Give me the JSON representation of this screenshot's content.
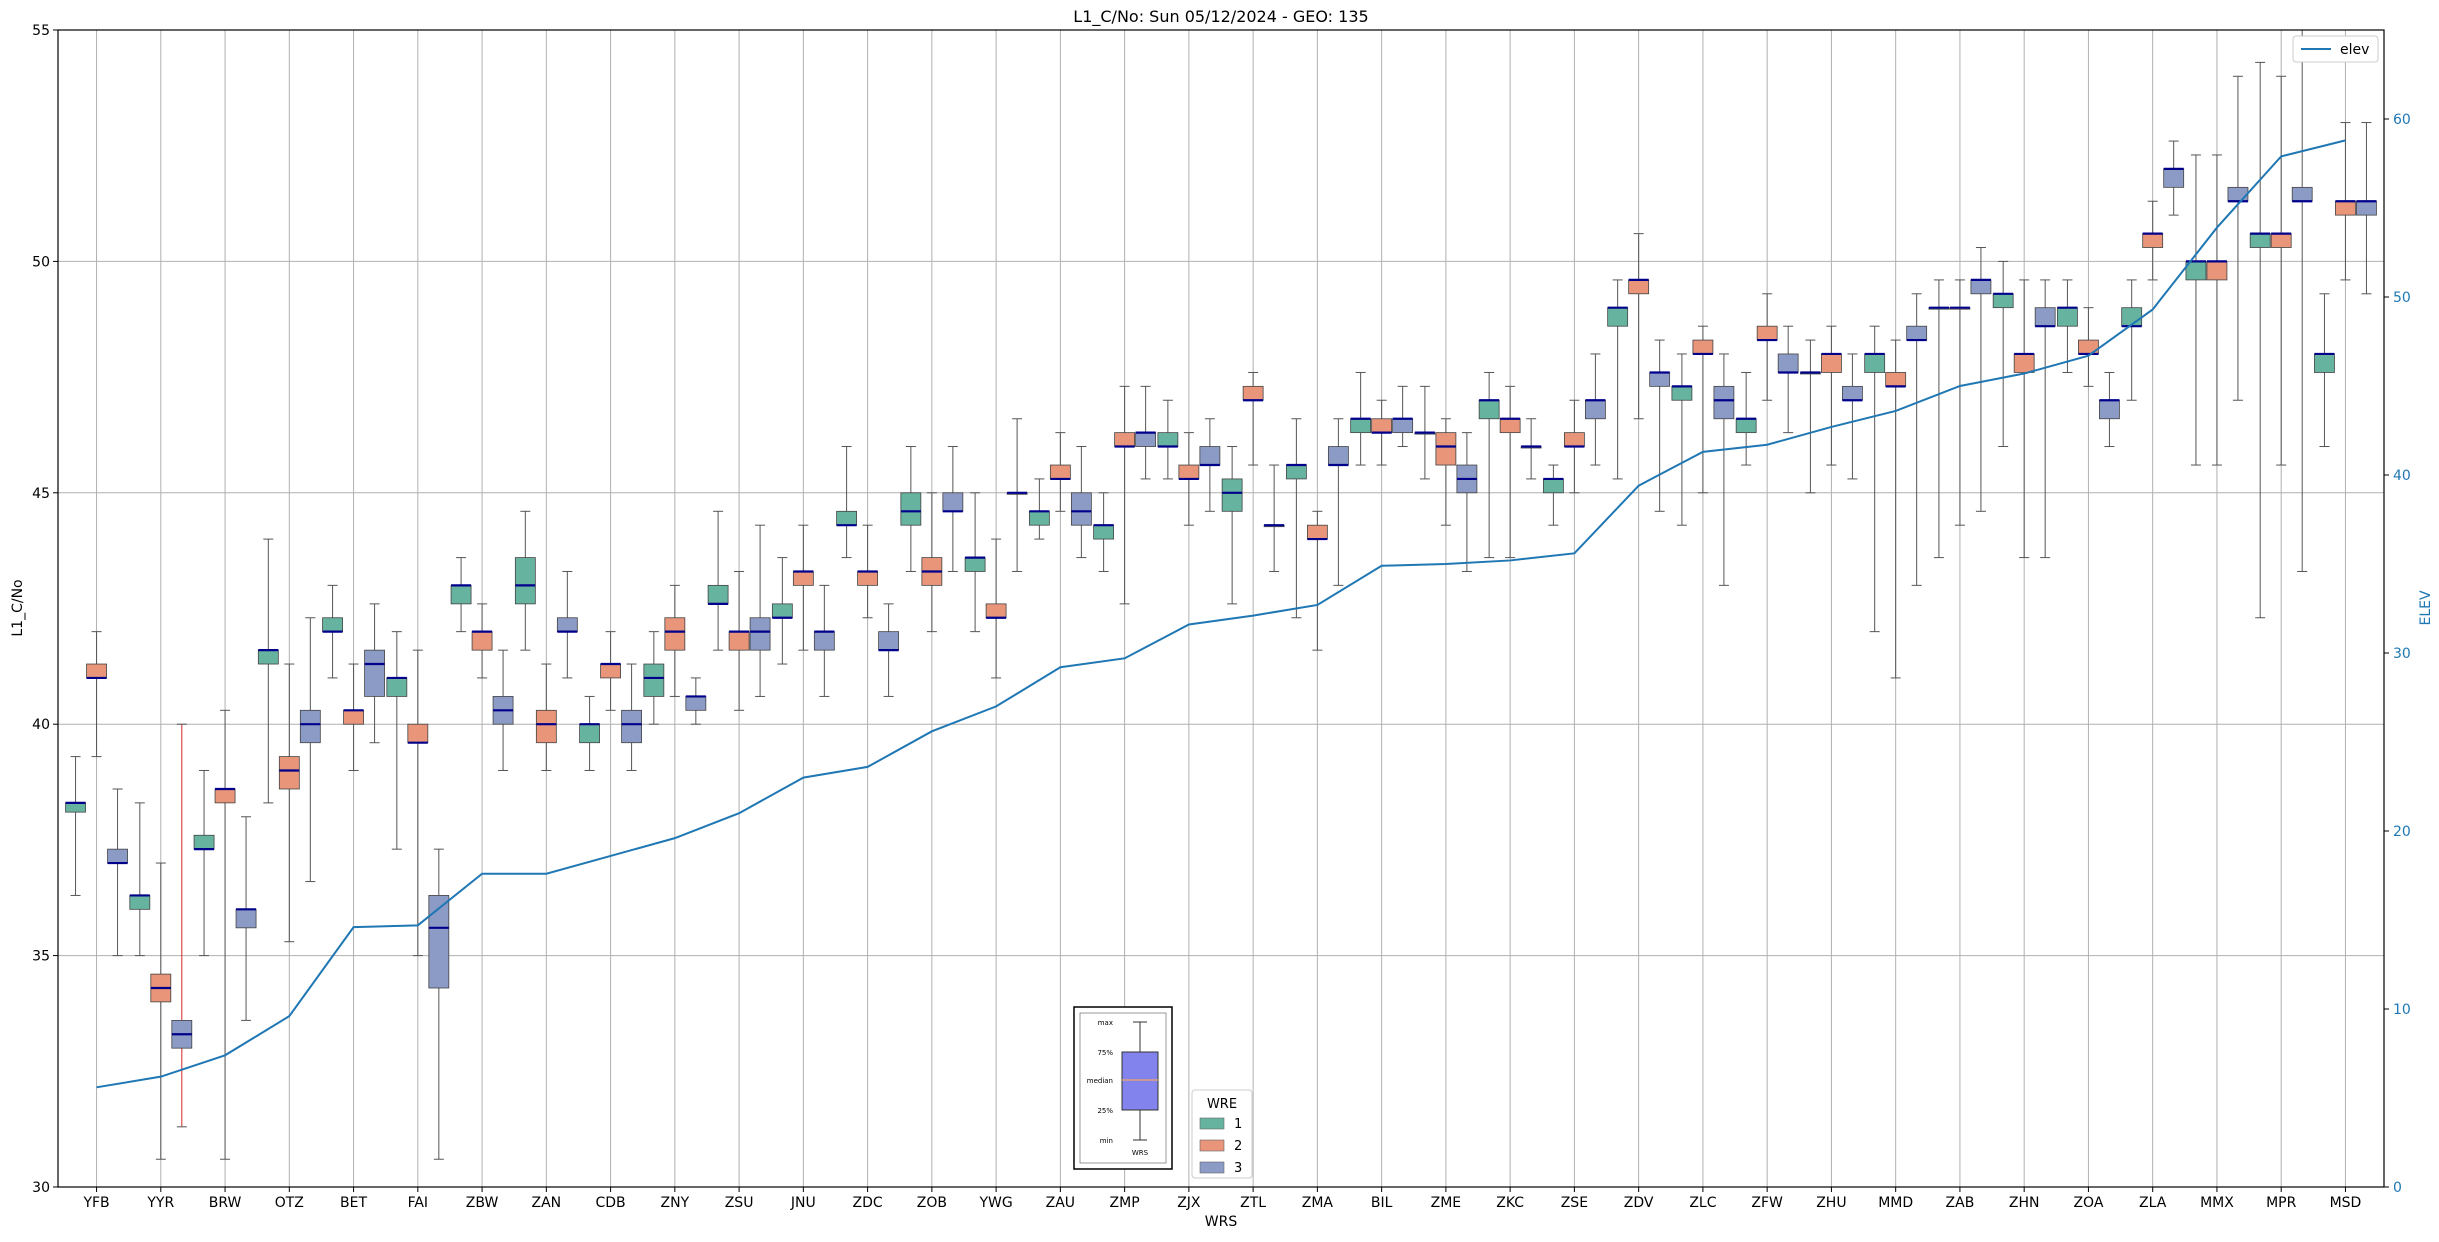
{
  "chart_data": {
    "type": "box",
    "title": "L1_C/No: Sun 05/12/2024 - GEO: 135",
    "xlabel": "WRS",
    "ylabel": "L1_C/No",
    "y2label": "ELEV",
    "ylim": [
      30,
      55
    ],
    "y2lim": [
      0,
      65
    ],
    "yticks": [
      30,
      35,
      40,
      45,
      50,
      55
    ],
    "y2ticks": [
      0,
      10,
      20,
      30,
      40,
      50,
      60
    ],
    "grid": true,
    "categories": [
      "YFB",
      "YYR",
      "BRW",
      "OTZ",
      "BET",
      "FAI",
      "ZBW",
      "ZAN",
      "CDB",
      "ZNY",
      "ZSU",
      "JNU",
      "ZDC",
      "ZOB",
      "YWG",
      "ZAU",
      "ZMP",
      "ZJX",
      "ZTL",
      "ZMA",
      "BIL",
      "ZME",
      "ZKC",
      "ZSE",
      "ZDV",
      "ZLC",
      "ZFW",
      "ZHU",
      "MMD",
      "ZAB",
      "ZHN",
      "ZOA",
      "ZLA",
      "MMX",
      "MPR",
      "MSD"
    ],
    "wre_colors": {
      "1": "#66b3a0",
      "2": "#e8957a",
      "3": "#8c9bc6"
    },
    "median_color": "#00008b",
    "elev_color": "#1f77b4",
    "boxes": [
      {
        "site": "YFB",
        "wre": "1",
        "min": 36.3,
        "q1": 38.1,
        "median": 38.3,
        "q3": 38.3,
        "max": 39.3
      },
      {
        "site": "YFB",
        "wre": "2",
        "min": 39.3,
        "q1": 41.0,
        "median": 41.0,
        "q3": 41.3,
        "max": 42.0
      },
      {
        "site": "YFB",
        "wre": "3",
        "min": 35.0,
        "q1": 37.0,
        "median": 37.0,
        "q3": 37.3,
        "max": 38.6
      },
      {
        "site": "YYR",
        "wre": "1",
        "min": 35.0,
        "q1": 36.0,
        "median": 36.3,
        "q3": 36.3,
        "max": 38.3
      },
      {
        "site": "YYR",
        "wre": "2",
        "min": 30.6,
        "q1": 34.0,
        "median": 34.3,
        "q3": 34.6,
        "max": 37.0
      },
      {
        "site": "YYR",
        "wre": "3",
        "min": 31.3,
        "q1": 33.0,
        "median": 33.3,
        "q3": 33.6,
        "max": 40.0
      },
      {
        "site": "BRW",
        "wre": "1",
        "min": 35.0,
        "q1": 37.3,
        "median": 37.3,
        "q3": 37.6,
        "max": 39.0
      },
      {
        "site": "BRW",
        "wre": "2",
        "min": 30.6,
        "q1": 38.3,
        "median": 38.6,
        "q3": 38.6,
        "max": 40.3
      },
      {
        "site": "BRW",
        "wre": "3",
        "min": 33.6,
        "q1": 35.6,
        "median": 36.0,
        "q3": 36.0,
        "max": 38.0
      },
      {
        "site": "OTZ",
        "wre": "1",
        "min": 38.3,
        "q1": 41.3,
        "median": 41.6,
        "q3": 41.6,
        "max": 44.0
      },
      {
        "site": "OTZ",
        "wre": "2",
        "min": 35.3,
        "q1": 38.6,
        "median": 39.0,
        "q3": 39.3,
        "max": 41.3
      },
      {
        "site": "OTZ",
        "wre": "3",
        "min": 36.6,
        "q1": 39.6,
        "median": 40.0,
        "q3": 40.3,
        "max": 42.3
      },
      {
        "site": "BET",
        "wre": "1",
        "min": 41.0,
        "q1": 42.0,
        "median": 42.0,
        "q3": 42.3,
        "max": 43.0
      },
      {
        "site": "BET",
        "wre": "2",
        "min": 39.0,
        "q1": 40.0,
        "median": 40.3,
        "q3": 40.3,
        "max": 41.3
      },
      {
        "site": "BET",
        "wre": "3",
        "min": 39.6,
        "q1": 40.6,
        "median": 41.3,
        "q3": 41.6,
        "max": 42.6
      },
      {
        "site": "FAI",
        "wre": "1",
        "min": 37.3,
        "q1": 40.6,
        "median": 41.0,
        "q3": 41.0,
        "max": 42.0
      },
      {
        "site": "FAI",
        "wre": "2",
        "min": 35.0,
        "q1": 39.6,
        "median": 39.6,
        "q3": 40.0,
        "max": 41.6
      },
      {
        "site": "FAI",
        "wre": "3",
        "min": 30.6,
        "q1": 34.3,
        "median": 35.6,
        "q3": 36.3,
        "max": 37.3
      },
      {
        "site": "ZBW",
        "wre": "1",
        "min": 42.0,
        "q1": 42.6,
        "median": 43.0,
        "q3": 43.0,
        "max": 43.6
      },
      {
        "site": "ZBW",
        "wre": "2",
        "min": 41.0,
        "q1": 41.6,
        "median": 42.0,
        "q3": 42.0,
        "max": 42.6
      },
      {
        "site": "ZBW",
        "wre": "3",
        "min": 39.0,
        "q1": 40.0,
        "median": 40.3,
        "q3": 40.6,
        "max": 41.6
      },
      {
        "site": "ZAN",
        "wre": "1",
        "min": 41.6,
        "q1": 42.6,
        "median": 43.0,
        "q3": 43.6,
        "max": 44.6
      },
      {
        "site": "ZAN",
        "wre": "2",
        "min": 39.0,
        "q1": 39.6,
        "median": 40.0,
        "q3": 40.3,
        "max": 41.3
      },
      {
        "site": "ZAN",
        "wre": "3",
        "min": 41.0,
        "q1": 42.0,
        "median": 42.0,
        "q3": 42.3,
        "max": 43.3
      },
      {
        "site": "CDB",
        "wre": "1",
        "min": 39.0,
        "q1": 39.6,
        "median": 40.0,
        "q3": 40.0,
        "max": 40.6
      },
      {
        "site": "CDB",
        "wre": "2",
        "min": 40.3,
        "q1": 41.0,
        "median": 41.3,
        "q3": 41.3,
        "max": 42.0
      },
      {
        "site": "CDB",
        "wre": "3",
        "min": 39.0,
        "q1": 39.6,
        "median": 40.0,
        "q3": 40.3,
        "max": 41.3
      },
      {
        "site": "ZNY",
        "wre": "1",
        "min": 40.0,
        "q1": 40.6,
        "median": 41.0,
        "q3": 41.3,
        "max": 42.0
      },
      {
        "site": "ZNY",
        "wre": "2",
        "min": 40.6,
        "q1": 41.6,
        "median": 42.0,
        "q3": 42.3,
        "max": 43.0
      },
      {
        "site": "ZNY",
        "wre": "3",
        "min": 40.0,
        "q1": 40.3,
        "median": 40.6,
        "q3": 40.6,
        "max": 41.0
      },
      {
        "site": "ZSU",
        "wre": "1",
        "min": 41.6,
        "q1": 42.6,
        "median": 42.6,
        "q3": 43.0,
        "max": 44.6
      },
      {
        "site": "ZSU",
        "wre": "2",
        "min": 40.3,
        "q1": 41.6,
        "median": 42.0,
        "q3": 42.0,
        "max": 43.3
      },
      {
        "site": "ZSU",
        "wre": "3",
        "min": 40.6,
        "q1": 41.6,
        "median": 42.0,
        "q3": 42.3,
        "max": 44.3
      },
      {
        "site": "JNU",
        "wre": "1",
        "min": 41.3,
        "q1": 42.3,
        "median": 42.3,
        "q3": 42.6,
        "max": 43.6
      },
      {
        "site": "JNU",
        "wre": "2",
        "min": 41.6,
        "q1": 43.0,
        "median": 43.3,
        "q3": 43.3,
        "max": 44.3
      },
      {
        "site": "JNU",
        "wre": "3",
        "min": 40.6,
        "q1": 41.6,
        "median": 42.0,
        "q3": 42.0,
        "max": 43.0
      },
      {
        "site": "ZDC",
        "wre": "1",
        "min": 43.6,
        "q1": 44.3,
        "median": 44.3,
        "q3": 44.6,
        "max": 46.0
      },
      {
        "site": "ZDC",
        "wre": "2",
        "min": 42.3,
        "q1": 43.0,
        "median": 43.3,
        "q3": 43.3,
        "max": 44.3
      },
      {
        "site": "ZDC",
        "wre": "3",
        "min": 40.6,
        "q1": 41.6,
        "median": 41.6,
        "q3": 42.0,
        "max": 42.6
      },
      {
        "site": "ZOB",
        "wre": "1",
        "min": 43.3,
        "q1": 44.3,
        "median": 44.6,
        "q3": 45.0,
        "max": 46.0
      },
      {
        "site": "ZOB",
        "wre": "2",
        "min": 42.0,
        "q1": 43.0,
        "median": 43.3,
        "q3": 43.6,
        "max": 45.0
      },
      {
        "site": "ZOB",
        "wre": "3",
        "min": 43.3,
        "q1": 44.6,
        "median": 44.6,
        "q3": 45.0,
        "max": 46.0
      },
      {
        "site": "YWG",
        "wre": "1",
        "min": 42.0,
        "q1": 43.3,
        "median": 43.6,
        "q3": 43.6,
        "max": 45.0
      },
      {
        "site": "YWG",
        "wre": "2",
        "min": 41.0,
        "q1": 42.3,
        "median": 42.3,
        "q3": 42.6,
        "max": 44.0
      },
      {
        "site": "YWG",
        "wre": "3",
        "min": 43.3,
        "q1": 45.0,
        "median": 45.0,
        "q3": 45.0,
        "max": 46.6
      },
      {
        "site": "ZAU",
        "wre": "1",
        "min": 44.0,
        "q1": 44.3,
        "median": 44.6,
        "q3": 44.6,
        "max": 45.3
      },
      {
        "site": "ZAU",
        "wre": "2",
        "min": 44.6,
        "q1": 45.3,
        "median": 45.3,
        "q3": 45.6,
        "max": 46.3
      },
      {
        "site": "ZAU",
        "wre": "3",
        "min": 43.6,
        "q1": 44.3,
        "median": 44.6,
        "q3": 45.0,
        "max": 46.0
      },
      {
        "site": "ZMP",
        "wre": "1",
        "min": 43.3,
        "q1": 44.0,
        "median": 44.3,
        "q3": 44.3,
        "max": 45.0
      },
      {
        "site": "ZMP",
        "wre": "2",
        "min": 42.6,
        "q1": 46.0,
        "median": 46.0,
        "q3": 46.3,
        "max": 47.3
      },
      {
        "site": "ZMP",
        "wre": "3",
        "min": 45.3,
        "q1": 46.0,
        "median": 46.3,
        "q3": 46.3,
        "max": 47.3
      },
      {
        "site": "ZJX",
        "wre": "1",
        "min": 45.3,
        "q1": 46.0,
        "median": 46.0,
        "q3": 46.3,
        "max": 47.0
      },
      {
        "site": "ZJX",
        "wre": "2",
        "min": 44.3,
        "q1": 45.3,
        "median": 45.3,
        "q3": 45.6,
        "max": 46.3
      },
      {
        "site": "ZJX",
        "wre": "3",
        "min": 44.6,
        "q1": 45.6,
        "median": 45.6,
        "q3": 46.0,
        "max": 46.6
      },
      {
        "site": "ZTL",
        "wre": "1",
        "min": 42.6,
        "q1": 44.6,
        "median": 45.0,
        "q3": 45.3,
        "max": 46.0
      },
      {
        "site": "ZTL",
        "wre": "2",
        "min": 45.6,
        "q1": 47.0,
        "median": 47.0,
        "q3": 47.3,
        "max": 47.6
      },
      {
        "site": "ZTL",
        "wre": "3",
        "min": 43.3,
        "q1": 44.3,
        "median": 44.3,
        "q3": 44.3,
        "max": 45.6
      },
      {
        "site": "ZMA",
        "wre": "1",
        "min": 42.3,
        "q1": 45.3,
        "median": 45.6,
        "q3": 45.6,
        "max": 46.6
      },
      {
        "site": "ZMA",
        "wre": "2",
        "min": 41.6,
        "q1": 44.0,
        "median": 44.0,
        "q3": 44.3,
        "max": 44.6
      },
      {
        "site": "ZMA",
        "wre": "3",
        "min": 43.0,
        "q1": 45.6,
        "median": 45.6,
        "q3": 46.0,
        "max": 46.6
      },
      {
        "site": "BIL",
        "wre": "1",
        "min": 45.6,
        "q1": 46.3,
        "median": 46.6,
        "q3": 46.6,
        "max": 47.6
      },
      {
        "site": "BIL",
        "wre": "2",
        "min": 45.6,
        "q1": 46.3,
        "median": 46.3,
        "q3": 46.6,
        "max": 47.0
      },
      {
        "site": "BIL",
        "wre": "3",
        "min": 46.0,
        "q1": 46.3,
        "median": 46.6,
        "q3": 46.6,
        "max": 47.3
      },
      {
        "site": "ZME",
        "wre": "1",
        "min": 45.3,
        "q1": 46.3,
        "median": 46.3,
        "q3": 46.3,
        "max": 47.3
      },
      {
        "site": "ZME",
        "wre": "2",
        "min": 44.3,
        "q1": 45.6,
        "median": 46.0,
        "q3": 46.3,
        "max": 46.6
      },
      {
        "site": "ZME",
        "wre": "3",
        "min": 43.3,
        "q1": 45.0,
        "median": 45.3,
        "q3": 45.6,
        "max": 46.3
      },
      {
        "site": "ZKC",
        "wre": "1",
        "min": 43.6,
        "q1": 46.6,
        "median": 47.0,
        "q3": 47.0,
        "max": 47.6
      },
      {
        "site": "ZKC",
        "wre": "2",
        "min": 43.6,
        "q1": 46.3,
        "median": 46.6,
        "q3": 46.6,
        "max": 47.3
      },
      {
        "site": "ZKC",
        "wre": "3",
        "min": 45.3,
        "q1": 46.0,
        "median": 46.0,
        "q3": 46.0,
        "max": 46.6
      },
      {
        "site": "ZSE",
        "wre": "1",
        "min": 44.3,
        "q1": 45.0,
        "median": 45.3,
        "q3": 45.3,
        "max": 45.6
      },
      {
        "site": "ZSE",
        "wre": "2",
        "min": 45.0,
        "q1": 46.0,
        "median": 46.0,
        "q3": 46.3,
        "max": 47.0
      },
      {
        "site": "ZSE",
        "wre": "3",
        "min": 45.6,
        "q1": 46.6,
        "median": 47.0,
        "q3": 47.0,
        "max": 48.0
      },
      {
        "site": "ZDV",
        "wre": "1",
        "min": 45.3,
        "q1": 48.6,
        "median": 49.0,
        "q3": 49.0,
        "max": 49.6
      },
      {
        "site": "ZDV",
        "wre": "2",
        "min": 46.6,
        "q1": 49.3,
        "median": 49.6,
        "q3": 49.6,
        "max": 50.6
      },
      {
        "site": "ZDV",
        "wre": "3",
        "min": 44.6,
        "q1": 47.3,
        "median": 47.6,
        "q3": 47.6,
        "max": 48.3
      },
      {
        "site": "ZLC",
        "wre": "1",
        "min": 44.3,
        "q1": 47.0,
        "median": 47.3,
        "q3": 47.3,
        "max": 48.0
      },
      {
        "site": "ZLC",
        "wre": "2",
        "min": 45.0,
        "q1": 48.0,
        "median": 48.0,
        "q3": 48.3,
        "max": 48.6
      },
      {
        "site": "ZLC",
        "wre": "3",
        "min": 43.0,
        "q1": 46.6,
        "median": 47.0,
        "q3": 47.3,
        "max": 48.0
      },
      {
        "site": "ZFW",
        "wre": "1",
        "min": 45.6,
        "q1": 46.3,
        "median": 46.6,
        "q3": 46.6,
        "max": 47.6
      },
      {
        "site": "ZFW",
        "wre": "2",
        "min": 47.0,
        "q1": 48.3,
        "median": 48.3,
        "q3": 48.6,
        "max": 49.3
      },
      {
        "site": "ZFW",
        "wre": "3",
        "min": 46.3,
        "q1": 47.6,
        "median": 47.6,
        "q3": 48.0,
        "max": 48.6
      },
      {
        "site": "ZHU",
        "wre": "1",
        "min": 45.0,
        "q1": 47.6,
        "median": 47.6,
        "q3": 47.6,
        "max": 48.3
      },
      {
        "site": "ZHU",
        "wre": "2",
        "min": 45.6,
        "q1": 47.6,
        "median": 48.0,
        "q3": 48.0,
        "max": 48.6
      },
      {
        "site": "ZHU",
        "wre": "3",
        "min": 45.3,
        "q1": 47.0,
        "median": 47.0,
        "q3": 47.3,
        "max": 48.0
      },
      {
        "site": "MMD",
        "wre": "1",
        "min": 42.0,
        "q1": 47.6,
        "median": 48.0,
        "q3": 48.0,
        "max": 48.6
      },
      {
        "site": "MMD",
        "wre": "2",
        "min": 41.0,
        "q1": 47.3,
        "median": 47.3,
        "q3": 47.6,
        "max": 48.3
      },
      {
        "site": "MMD",
        "wre": "3",
        "min": 43.0,
        "q1": 48.3,
        "median": 48.3,
        "q3": 48.6,
        "max": 49.3
      },
      {
        "site": "ZAB",
        "wre": "1",
        "min": 43.6,
        "q1": 49.0,
        "median": 49.0,
        "q3": 49.0,
        "max": 49.6
      },
      {
        "site": "ZAB",
        "wre": "2",
        "min": 44.3,
        "q1": 49.0,
        "median": 49.0,
        "q3": 49.0,
        "max": 49.6
      },
      {
        "site": "ZAB",
        "wre": "3",
        "min": 44.6,
        "q1": 49.3,
        "median": 49.6,
        "q3": 49.6,
        "max": 50.3
      },
      {
        "site": "ZHN",
        "wre": "1",
        "min": 46.0,
        "q1": 49.0,
        "median": 49.3,
        "q3": 49.3,
        "max": 50.0
      },
      {
        "site": "ZHN",
        "wre": "2",
        "min": 43.6,
        "q1": 47.6,
        "median": 48.0,
        "q3": 48.0,
        "max": 49.6
      },
      {
        "site": "ZHN",
        "wre": "3",
        "min": 43.6,
        "q1": 48.6,
        "median": 48.6,
        "q3": 49.0,
        "max": 49.6
      },
      {
        "site": "ZOA",
        "wre": "1",
        "min": 47.6,
        "q1": 48.6,
        "median": 49.0,
        "q3": 49.0,
        "max": 49.6
      },
      {
        "site": "ZOA",
        "wre": "2",
        "min": 47.3,
        "q1": 48.0,
        "median": 48.0,
        "q3": 48.3,
        "max": 49.0
      },
      {
        "site": "ZOA",
        "wre": "3",
        "min": 46.0,
        "q1": 46.6,
        "median": 47.0,
        "q3": 47.0,
        "max": 47.6
      },
      {
        "site": "ZLA",
        "wre": "1",
        "min": 47.0,
        "q1": 48.6,
        "median": 48.6,
        "q3": 49.0,
        "max": 49.6
      },
      {
        "site": "ZLA",
        "wre": "2",
        "min": 49.6,
        "q1": 50.3,
        "median": 50.6,
        "q3": 50.6,
        "max": 51.3
      },
      {
        "site": "ZLA",
        "wre": "3",
        "min": 51.0,
        "q1": 51.6,
        "median": 52.0,
        "q3": 52.0,
        "max": 52.6
      },
      {
        "site": "MMX",
        "wre": "1",
        "min": 45.6,
        "q1": 49.6,
        "median": 50.0,
        "q3": 50.0,
        "max": 52.3
      },
      {
        "site": "MMX",
        "wre": "2",
        "min": 45.6,
        "q1": 49.6,
        "median": 50.0,
        "q3": 50.0,
        "max": 52.3
      },
      {
        "site": "MMX",
        "wre": "3",
        "min": 47.0,
        "q1": 51.3,
        "median": 51.3,
        "q3": 51.6,
        "max": 54.0
      },
      {
        "site": "MPR",
        "wre": "1",
        "min": 42.3,
        "q1": 50.3,
        "median": 50.6,
        "q3": 50.6,
        "max": 54.3
      },
      {
        "site": "MPR",
        "wre": "2",
        "min": 45.6,
        "q1": 50.3,
        "median": 50.6,
        "q3": 50.6,
        "max": 54.0
      },
      {
        "site": "MPR",
        "wre": "3",
        "min": 43.3,
        "q1": 51.3,
        "median": 51.3,
        "q3": 51.6,
        "max": 55.0
      },
      {
        "site": "MSD",
        "wre": "1",
        "min": 46.0,
        "q1": 47.6,
        "median": 48.0,
        "q3": 48.0,
        "max": 49.3
      },
      {
        "site": "MSD",
        "wre": "2",
        "min": 49.6,
        "q1": 51.0,
        "median": 51.3,
        "q3": 51.3,
        "max": 53.0
      },
      {
        "site": "MSD",
        "wre": "3",
        "min": 49.3,
        "q1": 51.0,
        "median": 51.3,
        "q3": 51.3,
        "max": 53.0
      }
    ],
    "elev_series": {
      "name": "elev",
      "values": [
        5.6,
        6.2,
        7.4,
        9.6,
        14.6,
        14.7,
        17.6,
        17.6,
        18.6,
        19.6,
        21.0,
        23.0,
        23.6,
        25.6,
        27.0,
        29.2,
        29.7,
        31.6,
        32.1,
        32.7,
        34.9,
        35.0,
        35.2,
        35.6,
        39.4,
        41.3,
        41.7,
        42.7,
        43.6,
        45.0,
        45.7,
        46.7,
        49.3,
        53.9,
        57.9,
        58.8
      ]
    },
    "legend_elev": {
      "label": "elev",
      "position": "top-right"
    },
    "legend_wre": {
      "title": "WRE",
      "entries": [
        "1",
        "2",
        "3"
      ],
      "position": "bottom-center"
    },
    "key_labels": {
      "max": "max",
      "q3": "75%",
      "median": "median",
      "q1": "25%",
      "min": "min",
      "x": "WRS"
    },
    "red_whisker_site": "YYR"
  }
}
